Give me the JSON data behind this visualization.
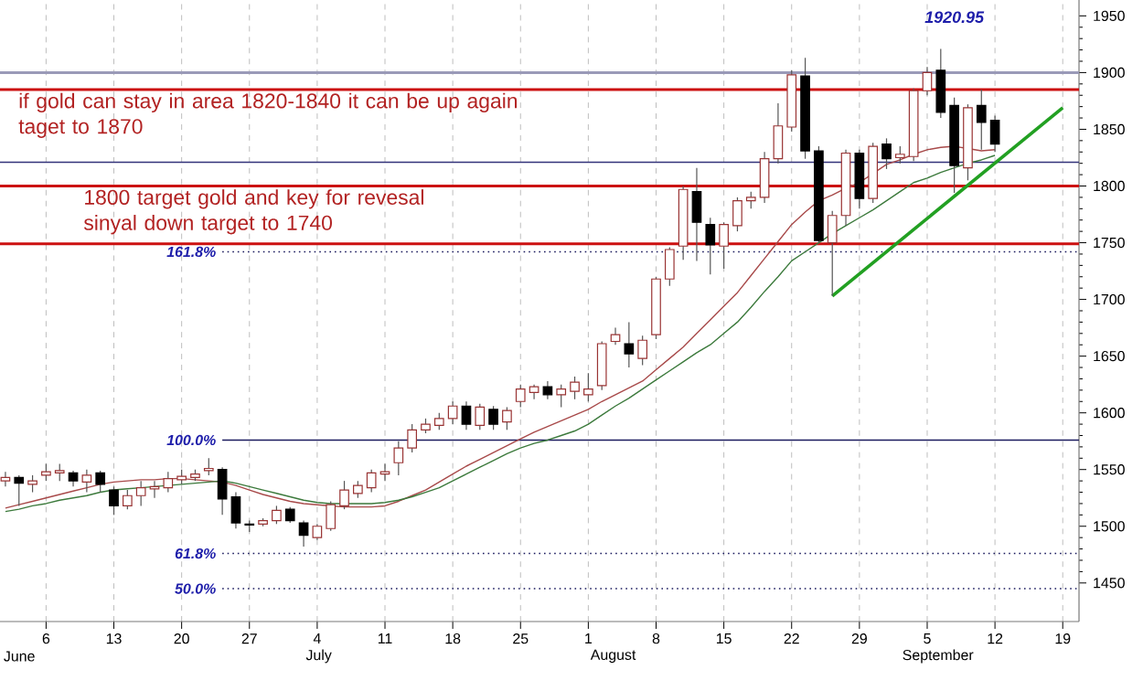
{
  "chart_data": {
    "type": "candlestick",
    "categories": [
      null,
      null,
      null,
      "6",
      null,
      null,
      null,
      null,
      "13",
      null,
      null,
      null,
      null,
      "20",
      null,
      null,
      null,
      null,
      "27",
      null,
      null,
      null,
      null,
      "4",
      null,
      null,
      null,
      null,
      "11",
      null,
      null,
      null,
      null,
      "18",
      null,
      null,
      null,
      null,
      "25",
      null,
      null,
      null,
      null,
      "1",
      null,
      null,
      null,
      null,
      "8",
      null,
      null,
      null,
      null,
      "15",
      null,
      null,
      null,
      null,
      "22",
      null,
      null,
      null,
      null,
      "29",
      null,
      null,
      null,
      null,
      "5",
      null,
      null,
      null,
      null,
      "12",
      null,
      null,
      null,
      null,
      "19"
    ],
    "ohlc": [
      [
        1540,
        1548,
        1535,
        1543
      ],
      [
        1543,
        1545,
        1518,
        1538
      ],
      [
        1537,
        1545,
        1530,
        1540
      ],
      [
        1545,
        1555,
        1540,
        1548
      ],
      [
        1547,
        1555,
        1540,
        1549
      ],
      [
        1547,
        1549,
        1535,
        1540
      ],
      [
        1539,
        1550,
        1530,
        1545
      ],
      [
        1547,
        1549,
        1530,
        1537
      ],
      [
        1532,
        1535,
        1510,
        1518
      ],
      [
        1518,
        1532,
        1515,
        1527
      ],
      [
        1527,
        1540,
        1518,
        1534
      ],
      [
        1533,
        1540,
        1525,
        1535
      ],
      [
        1534,
        1548,
        1530,
        1542
      ],
      [
        1541,
        1550,
        1537,
        1544
      ],
      [
        1543,
        1550,
        1540,
        1546
      ],
      [
        1549,
        1560,
        1545,
        1551
      ],
      [
        1550,
        1552,
        1510,
        1524
      ],
      [
        1526,
        1530,
        1498,
        1503
      ],
      [
        1502,
        1505,
        1495,
        1501
      ],
      [
        1502,
        1507,
        1500,
        1505
      ],
      [
        1505,
        1518,
        1502,
        1514
      ],
      [
        1515,
        1517,
        1503,
        1505
      ],
      [
        1503,
        1505,
        1482,
        1492
      ],
      [
        1490,
        1502,
        1488,
        1500
      ],
      [
        1498,
        1522,
        1496,
        1519
      ],
      [
        1518,
        1540,
        1515,
        1532
      ],
      [
        1529,
        1540,
        1525,
        1536
      ],
      [
        1534,
        1550,
        1530,
        1547
      ],
      [
        1546,
        1555,
        1540,
        1548
      ],
      [
        1556,
        1575,
        1545,
        1569
      ],
      [
        1569,
        1590,
        1565,
        1585
      ],
      [
        1585,
        1595,
        1582,
        1590
      ],
      [
        1589,
        1600,
        1585,
        1595
      ],
      [
        1595,
        1610,
        1590,
        1606
      ],
      [
        1606,
        1610,
        1585,
        1590
      ],
      [
        1589,
        1608,
        1585,
        1605
      ],
      [
        1603,
        1606,
        1585,
        1590
      ],
      [
        1592,
        1605,
        1585,
        1602
      ],
      [
        1610,
        1625,
        1605,
        1621
      ],
      [
        1618,
        1625,
        1612,
        1623
      ],
      [
        1623,
        1628,
        1612,
        1616
      ],
      [
        1616,
        1625,
        1605,
        1621
      ],
      [
        1619,
        1632,
        1612,
        1627
      ],
      [
        1616,
        1635,
        1610,
        1621
      ],
      [
        1624,
        1663,
        1620,
        1661
      ],
      [
        1663,
        1675,
        1660,
        1669
      ],
      [
        1661,
        1680,
        1640,
        1652
      ],
      [
        1648,
        1668,
        1642,
        1664
      ],
      [
        1669,
        1720,
        1665,
        1718
      ],
      [
        1718,
        1746,
        1712,
        1744
      ],
      [
        1747,
        1800,
        1735,
        1797
      ],
      [
        1795,
        1816,
        1734,
        1768
      ],
      [
        1766,
        1772,
        1722,
        1748
      ],
      [
        1747,
        1768,
        1727,
        1766
      ],
      [
        1765,
        1790,
        1760,
        1787
      ],
      [
        1787,
        1795,
        1780,
        1790
      ],
      [
        1790,
        1830,
        1785,
        1824
      ],
      [
        1824,
        1873,
        1820,
        1853
      ],
      [
        1852,
        1902,
        1848,
        1898
      ],
      [
        1897,
        1913,
        1824,
        1831
      ],
      [
        1831,
        1835,
        1750,
        1752
      ],
      [
        1750,
        1778,
        1703,
        1774
      ],
      [
        1774,
        1832,
        1765,
        1829
      ],
      [
        1829,
        1832,
        1780,
        1789
      ],
      [
        1789,
        1838,
        1785,
        1835
      ],
      [
        1837,
        1842,
        1815,
        1824
      ],
      [
        1825,
        1835,
        1820,
        1828
      ],
      [
        1826,
        1886,
        1822,
        1884
      ],
      [
        1884,
        1905,
        1880,
        1900
      ],
      [
        1902,
        1920.95,
        1860,
        1865
      ],
      [
        1871,
        1878,
        1794,
        1818
      ],
      [
        1816,
        1872,
        1805,
        1869
      ],
      [
        1871,
        1885,
        1832,
        1856
      ],
      [
        1858,
        1862,
        1830,
        1837
      ],
      null,
      null,
      null,
      null,
      null
    ],
    "series": [
      {
        "type": "line",
        "color": "#a84a4a",
        "values": [
          1516,
          1519,
          1522,
          1525,
          1528,
          1531,
          1534,
          1537,
          1539,
          1540,
          1541,
          1541,
          1542,
          1542,
          1541,
          1540,
          1539,
          1536,
          1532,
          1528,
          1525,
          1522,
          1520,
          1519,
          1518,
          1517,
          1517,
          1517,
          1518,
          1522,
          1527,
          1532,
          1539,
          1546,
          1553,
          1559,
          1565,
          1571,
          1577,
          1583,
          1588,
          1593,
          1598,
          1603,
          1610,
          1616,
          1622,
          1628,
          1638,
          1648,
          1658,
          1670,
          1682,
          1694,
          1706,
          1721,
          1736,
          1751,
          1766,
          1777,
          1787,
          1792,
          1798,
          1803,
          1811,
          1819,
          1823,
          1828,
          1832,
          1834,
          1835,
          1833,
          1831,
          1832,
          null,
          null,
          null,
          null,
          null
        ]
      },
      {
        "type": "line",
        "color": "#3c7a3c",
        "values": [
          1513,
          1515,
          1518,
          1520,
          1523,
          1525,
          1527,
          1530,
          1532,
          1533,
          1534,
          1535,
          1536,
          1537,
          1538,
          1539,
          1540,
          1538,
          1535,
          1532,
          1529,
          1526,
          1523,
          1521,
          1520,
          1520,
          1520,
          1520,
          1521,
          1523,
          1526,
          1530,
          1534,
          1540,
          1546,
          1552,
          1558,
          1564,
          1569,
          1573,
          1576,
          1580,
          1584,
          1590,
          1598,
          1606,
          1613,
          1621,
          1629,
          1637,
          1645,
          1653,
          1660,
          1670,
          1680,
          1693,
          1707,
          1720,
          1734,
          1742,
          1750,
          1758,
          1765,
          1772,
          1779,
          1787,
          1795,
          1803,
          1807,
          1812,
          1816,
          1820,
          1823,
          1827,
          null,
          null,
          null,
          null,
          null
        ]
      },
      {
        "type": "line",
        "color": "#22a022",
        "values": [
          null,
          null,
          null,
          null,
          null,
          null,
          null,
          null,
          null,
          null,
          null,
          null,
          null,
          null,
          null,
          null,
          null,
          null,
          null,
          null,
          null,
          null,
          null,
          null,
          null,
          null,
          null,
          null,
          null,
          null,
          null,
          null,
          null,
          null,
          null,
          null,
          null,
          null,
          null,
          null,
          null,
          null,
          null,
          null,
          null,
          null,
          null,
          null,
          null,
          null,
          null,
          null,
          null,
          null,
          null,
          null,
          null,
          null,
          null,
          null,
          null,
          1703,
          null,
          null,
          null,
          null,
          null,
          null,
          null,
          null,
          null,
          null,
          null,
          null,
          null,
          null,
          null,
          null,
          1869
        ]
      }
    ],
    "ylim": [
      1416,
      1964
    ],
    "yticks": [
      1450,
      1500,
      1550,
      1600,
      1650,
      1700,
      1750,
      1800,
      1850,
      1900,
      1950
    ],
    "grid": "x",
    "ref_lines": [
      {
        "axis": "y",
        "value": 1900,
        "color": "#9a9ab8",
        "line_style": "solid"
      },
      {
        "axis": "y",
        "value": 1885,
        "color": "#cc1111",
        "line_style": "solid"
      },
      {
        "axis": "y",
        "value": 1821,
        "color": "#33337a",
        "line_style": "solid"
      },
      {
        "axis": "y",
        "value": 1800,
        "color": "#cc1111",
        "line_style": "solid"
      },
      {
        "axis": "y",
        "value": 1749,
        "color": "#cc1111",
        "line_style": "solid"
      },
      {
        "axis": "y",
        "value": 1742,
        "color": "#1a1a5e",
        "line_style": "dotted"
      },
      {
        "axis": "y",
        "value": 1576,
        "color": "#1a1a5e",
        "line_style": "solid"
      },
      {
        "axis": "y",
        "value": 1476,
        "color": "#1a1a5e",
        "line_style": "dotted"
      },
      {
        "axis": "y",
        "value": 1445,
        "color": "#1a1a5e",
        "line_style": "dotted"
      }
    ],
    "annotations": [
      "if gold can stay in area 1820-1840 it can be up again taget to 1870",
      "1800 target gold and key for revesal sinyal down target to 1740",
      "1920.95",
      "June",
      "July",
      "August",
      "September",
      "161.8%",
      "100.0%",
      "61.8%",
      "50.0%"
    ]
  }
}
